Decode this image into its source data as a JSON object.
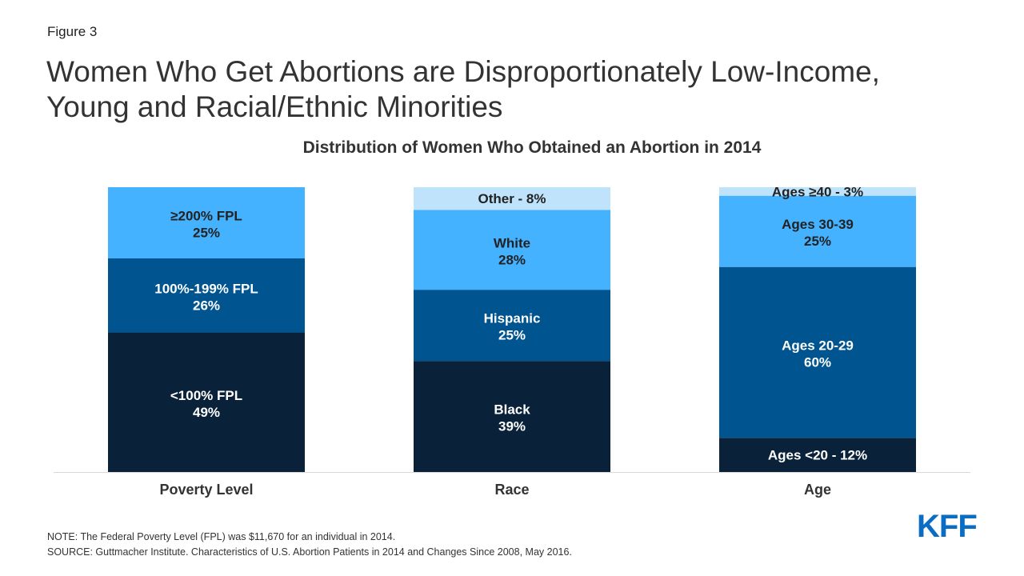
{
  "figure_label": "Figure 3",
  "title": "Women Who Get Abortions are Disproportionately Low-Income, Young and Racial/Ethnic Minorities",
  "notes": {
    "note": "NOTE: The Federal Poverty Level (FPL) was $11,670 for an individual in 2014.",
    "source": "SOURCE: Guttmacher Institute. Characteristics of U.S. Abortion Patients in 2014 and Changes Since 2008, May 2016."
  },
  "logo": {
    "text": "KFF",
    "color": "#0B6CC4"
  },
  "chart_data": {
    "type": "bar",
    "stacked": true,
    "title": "Distribution of Women Who Obtained an Abortion in 2014",
    "xlabel": "",
    "ylabel": "",
    "ylim": [
      0,
      100
    ],
    "grid": false,
    "categories": [
      "Poverty Level",
      "Race",
      "Age"
    ],
    "bars": [
      {
        "category": "Poverty Level",
        "segments": [
          {
            "label": "<100% FPL",
            "value": 49,
            "value_label": "49%",
            "color": "#0A2239",
            "text_color": "#FFFFFF"
          },
          {
            "label": "100%-199% FPL",
            "value": 26,
            "value_label": "26%",
            "color": "#00548F",
            "text_color": "#FFFFFF"
          },
          {
            "label": "≥200% FPL",
            "value": 25,
            "value_label": "25%",
            "color": "#45B2FF",
            "text_color": "#222222"
          }
        ]
      },
      {
        "category": "Race",
        "segments": [
          {
            "label": "Black",
            "value": 39,
            "value_label": "39%",
            "color": "#0A2239",
            "text_color": "#FFFFFF"
          },
          {
            "label": "Hispanic",
            "value": 25,
            "value_label": "25%",
            "color": "#00548F",
            "text_color": "#FFFFFF"
          },
          {
            "label": "White",
            "value": 28,
            "value_label": "28%",
            "color": "#45B2FF",
            "text_color": "#222222"
          },
          {
            "label": "Other - 8%",
            "value": 8,
            "value_label": "",
            "color": "#BEE3FA",
            "text_color": "#222222"
          }
        ]
      },
      {
        "category": "Age",
        "segments": [
          {
            "label": "Ages <20 - 12%",
            "value": 12,
            "value_label": "",
            "color": "#0A2239",
            "text_color": "#FFFFFF"
          },
          {
            "label": "Ages 20-29",
            "value": 60,
            "value_label": "60%",
            "color": "#00548F",
            "text_color": "#FFFFFF"
          },
          {
            "label": "Ages 30-39",
            "value": 25,
            "value_label": "25%",
            "color": "#45B2FF",
            "text_color": "#222222"
          },
          {
            "label": "Ages ≥40 - 3%",
            "value": 3,
            "value_label": "",
            "color": "#BEE3FA",
            "text_color": "#222222"
          }
        ]
      }
    ]
  }
}
